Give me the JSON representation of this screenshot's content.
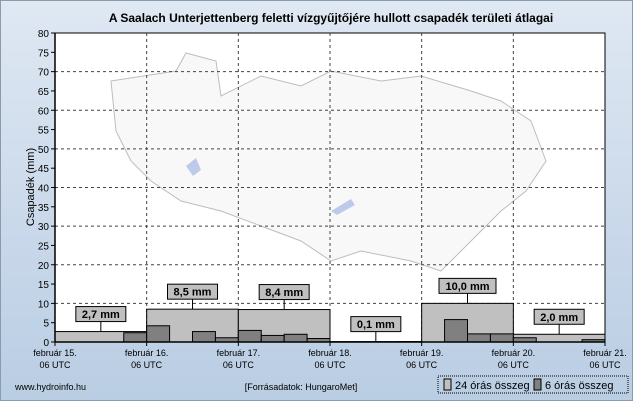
{
  "chart_data": {
    "type": "bar",
    "title": "A Saalach Unterjettenberg feletti vízgyűjtőjére hullott csapadék területi átlagai",
    "ylabel": "Csapadék (mm)",
    "xlabel": "",
    "ylim": [
      0,
      80
    ],
    "yticks": [
      0,
      5,
      10,
      15,
      20,
      25,
      30,
      35,
      40,
      45,
      50,
      55,
      60,
      65,
      70,
      75,
      80
    ],
    "xticks": [
      {
        "line1": "február 15.",
        "line2": "06 UTC"
      },
      {
        "line1": "február 16.",
        "line2": "06 UTC"
      },
      {
        "line1": "február 17.",
        "line2": "06 UTC"
      },
      {
        "line1": "február 18.",
        "line2": "06 UTC"
      },
      {
        "line1": "február 19.",
        "line2": "06 UTC"
      },
      {
        "line1": "február 20.",
        "line2": "06 UTC"
      },
      {
        "line1": "február 21.",
        "line2": "06 UTC"
      }
    ],
    "grid": true,
    "legend_position": "bottom-right",
    "series": [
      {
        "name": "24 órás összeg",
        "color": "#c0c0c0",
        "values": [
          2.7,
          8.5,
          8.4,
          0.1,
          10.0,
          2.0
        ],
        "labels": [
          "2,7 mm",
          "8,5 mm",
          "8,4 mm",
          "0,1 mm",
          "10,0 mm",
          "2,0 mm"
        ]
      },
      {
        "name": "6 órás összeg",
        "color": "#808080",
        "values": [
          0,
          0,
          0,
          2.4,
          4.2,
          0,
          2.7,
          1.1,
          3.0,
          1.7,
          2.0,
          0.9,
          0,
          0,
          0,
          0.1,
          0,
          5.8,
          2.1,
          2.1,
          1.1,
          0,
          0,
          0.6
        ]
      }
    ]
  },
  "footer": {
    "site": "www.hydroinfo.hu",
    "source": "[Forrásadatok: HungaroMet]"
  }
}
